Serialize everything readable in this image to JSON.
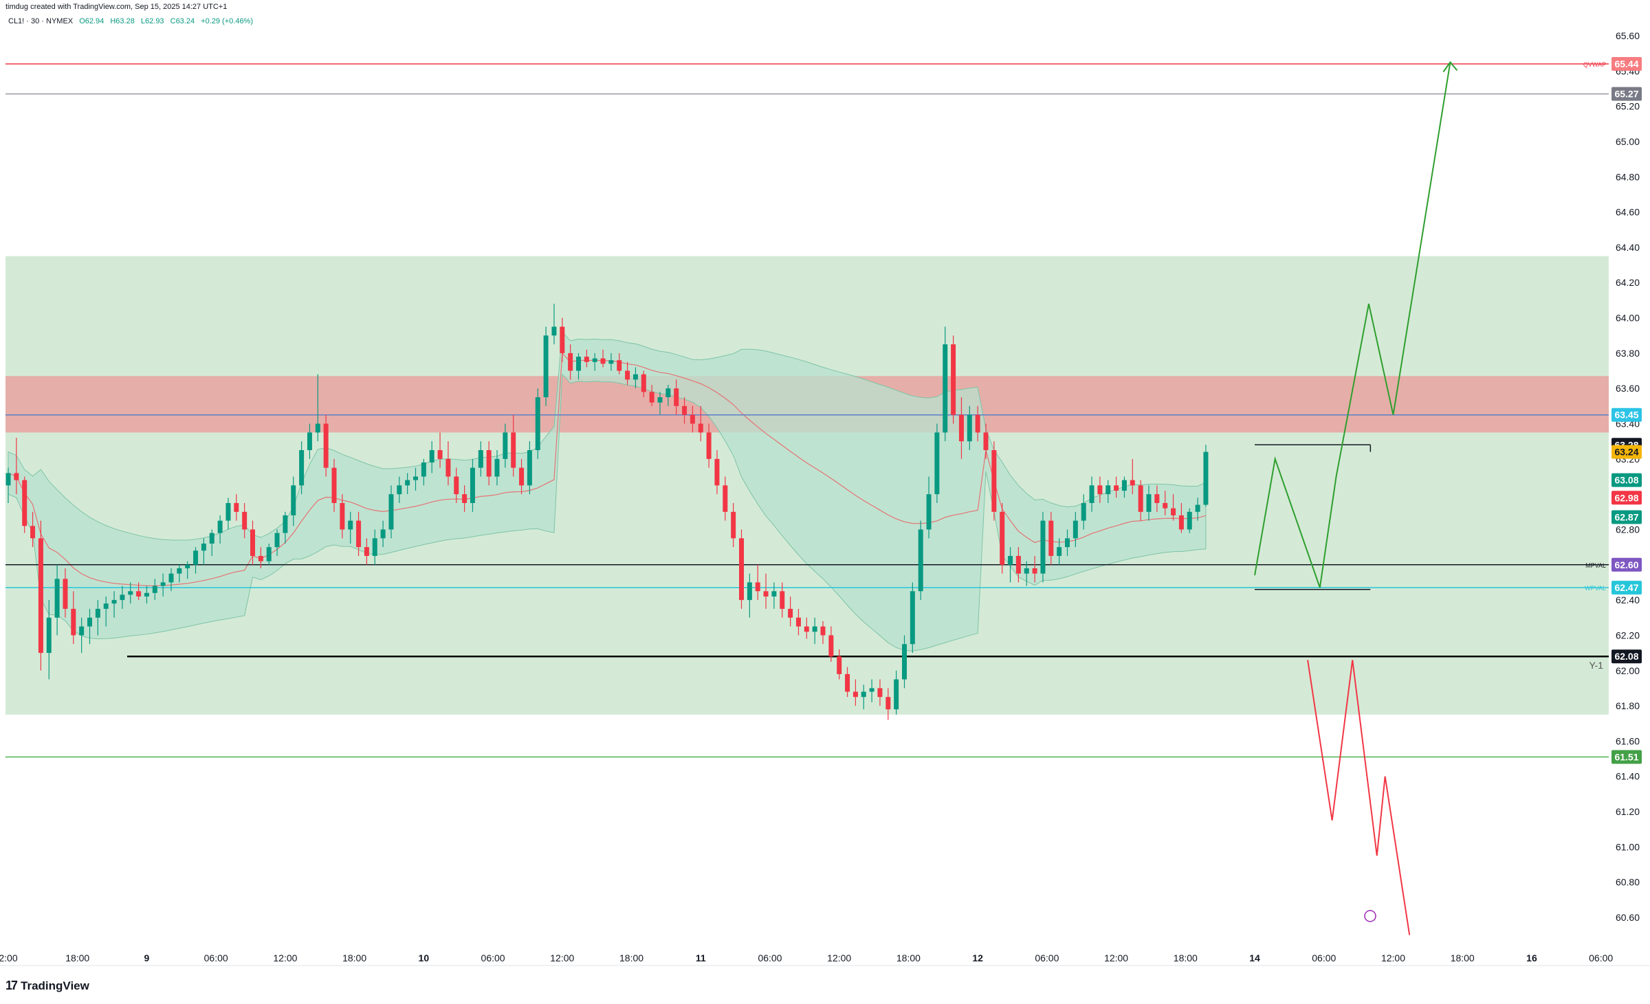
{
  "header": {
    "created_by": "timdug created with TradingView.com, Sep 15, 2025 14:27 UTC+1",
    "symbol": "CL1! · 30 · NYMEX",
    "open": "O62.94",
    "high": "H63.28",
    "low": "L62.93",
    "close": "C63.24",
    "change": "+0.29 (+0.46%)"
  },
  "brand": {
    "logo_text": "TradingView",
    "logo_mark": "17"
  },
  "colors": {
    "up": "#089981",
    "down": "#f23645",
    "green_zone": "#d4ead6",
    "red_zone": "#e6aea8",
    "vwap_band": "#b8e0cf",
    "qvwap": "#f23645",
    "projection_up": "#2e9e2e",
    "projection_down": "#f23645"
  },
  "chart_data": {
    "type": "candlestick",
    "symbol": "CL1!",
    "timeframe": "30",
    "exchange": "NYMEX",
    "ylim": [
      60.5,
      65.8
    ],
    "price_ticks": [
      "65.60",
      "65.40",
      "65.20",
      "65.00",
      "64.80",
      "64.60",
      "64.40",
      "64.20",
      "64.00",
      "63.80",
      "63.60",
      "63.40",
      "63.20",
      "63.00",
      "62.80",
      "62.60",
      "62.40",
      "62.20",
      "62.00",
      "61.80",
      "61.60",
      "61.40",
      "61.20",
      "61.00",
      "60.80",
      "60.60"
    ],
    "x_ticks": [
      {
        "label": "2:00",
        "x": 0.0,
        "bold": false
      },
      {
        "label": "18:00",
        "x": 8.5,
        "bold": false
      },
      {
        "label": "9",
        "x": 17.0,
        "bold": true
      },
      {
        "label": "06:00",
        "x": 25.5,
        "bold": false
      },
      {
        "label": "12:00",
        "x": 34.0,
        "bold": false
      },
      {
        "label": "18:00",
        "x": 42.5,
        "bold": false
      },
      {
        "label": "10",
        "x": 51.0,
        "bold": true
      },
      {
        "label": "06:00",
        "x": 59.5,
        "bold": false
      },
      {
        "label": "12:00",
        "x": 68.0,
        "bold": false
      },
      {
        "label": "18:00",
        "x": 76.5,
        "bold": false
      },
      {
        "label": "11",
        "x": 85.0,
        "bold": true
      },
      {
        "label": "06:00",
        "x": 93.5,
        "bold": false
      },
      {
        "label": "12:00",
        "x": 102.0,
        "bold": false
      },
      {
        "label": "18:00",
        "x": 110.5,
        "bold": false
      },
      {
        "label": "12",
        "x": 119.0,
        "bold": true
      },
      {
        "label": "06:00",
        "x": 127.5,
        "bold": false
      },
      {
        "label": "12:00",
        "x": 136.0,
        "bold": false
      },
      {
        "label": "18:00",
        "x": 144.5,
        "bold": false
      },
      {
        "label": "14",
        "x": 153.0,
        "bold": true
      },
      {
        "label": "06:00",
        "x": 161.5,
        "bold": false
      },
      {
        "label": "12:00",
        "x": 170.0,
        "bold": false
      },
      {
        "label": "18:00",
        "x": 178.5,
        "bold": false
      },
      {
        "label": "16",
        "x": 187.0,
        "bold": true
      },
      {
        "label": "06:00",
        "x": 195.5,
        "bold": false
      }
    ],
    "zones": [
      {
        "name": "green-zone",
        "from": 61.75,
        "to": 64.35,
        "color": "#d4ead6"
      },
      {
        "name": "red-zone",
        "from": 63.35,
        "to": 63.67,
        "color": "#e6aea8"
      }
    ],
    "levels": [
      {
        "name": "QVWAP",
        "price": 65.44,
        "label": "QVWAP",
        "tag": "65.44",
        "color": "#f23645",
        "tag_bg": "#f77c80"
      },
      {
        "name": "level-65.27",
        "price": 65.27,
        "label": "",
        "tag": "65.27",
        "color": "#9598a1",
        "tag_bg": "#787b86"
      },
      {
        "name": "level-63.45",
        "price": 63.45,
        "label": "",
        "tag": "63.45",
        "color": "#5b7fc7",
        "tag_bg": "#2cc3e6"
      },
      {
        "name": "MPVAL",
        "price": 62.6,
        "label": "MPVAL",
        "tag": "62.60",
        "color": "#131722",
        "tag_bg": "#7e57c2"
      },
      {
        "name": "WPVAL",
        "price": 62.47,
        "label": "WPVAL",
        "tag": "62.47",
        "color": "#26c6da",
        "tag_bg": "#26c6da"
      },
      {
        "name": "Y-1",
        "price": 62.08,
        "label": "Y-1",
        "tag": "62.08",
        "color": "#000000",
        "tag_bg": "#131722"
      },
      {
        "name": "level-61.51",
        "price": 61.51,
        "label": "",
        "tag": "61.51",
        "color": "#4caf50",
        "tag_bg": "#43a047"
      }
    ],
    "price_tags": [
      {
        "tag": "63.28",
        "bg": "#131722",
        "fg": "#ffffff",
        "price": 63.28
      },
      {
        "tag": "63.24",
        "bg": "#f5b60a",
        "fg": "#131722",
        "price": 63.24
      },
      {
        "tag": "63.08",
        "bg": "#089981",
        "fg": "#ffffff",
        "price": 63.08
      },
      {
        "tag": "62.98",
        "bg": "#f23645",
        "fg": "#ffffff",
        "price": 62.98
      },
      {
        "tag": "62.87",
        "bg": "#089981",
        "fg": "#ffffff",
        "price": 62.87
      }
    ],
    "candles": [
      [
        63.05,
        63.15,
        62.95,
        63.12
      ],
      [
        63.12,
        63.32,
        63.0,
        63.08
      ],
      [
        63.08,
        63.1,
        62.78,
        62.82
      ],
      [
        62.82,
        62.9,
        62.7,
        62.75
      ],
      [
        62.75,
        62.85,
        62.0,
        62.1
      ],
      [
        62.1,
        62.4,
        61.95,
        62.3
      ],
      [
        62.3,
        62.6,
        62.2,
        62.52
      ],
      [
        62.52,
        62.58,
        62.3,
        62.35
      ],
      [
        62.35,
        62.45,
        62.15,
        62.2
      ],
      [
        62.2,
        62.3,
        62.1,
        62.25
      ],
      [
        62.25,
        62.35,
        62.15,
        62.3
      ],
      [
        62.3,
        62.4,
        62.2,
        62.35
      ],
      [
        62.35,
        62.42,
        62.25,
        62.38
      ],
      [
        62.38,
        62.45,
        62.3,
        62.4
      ],
      [
        62.4,
        62.48,
        62.35,
        62.43
      ],
      [
        62.43,
        62.5,
        62.38,
        62.45
      ],
      [
        62.45,
        62.5,
        62.4,
        62.42
      ],
      [
        62.42,
        62.48,
        62.38,
        62.44
      ],
      [
        62.44,
        62.52,
        62.4,
        62.48
      ],
      [
        62.48,
        62.55,
        62.42,
        62.5
      ],
      [
        62.5,
        62.58,
        62.45,
        62.55
      ],
      [
        62.55,
        62.6,
        62.5,
        62.58
      ],
      [
        62.58,
        62.62,
        62.52,
        62.6
      ],
      [
        62.6,
        62.7,
        62.55,
        62.68
      ],
      [
        62.68,
        62.75,
        62.6,
        62.72
      ],
      [
        62.72,
        62.8,
        62.65,
        62.78
      ],
      [
        62.78,
        62.88,
        62.72,
        62.85
      ],
      [
        62.85,
        62.98,
        62.8,
        62.95
      ],
      [
        62.95,
        63.0,
        62.85,
        62.9
      ],
      [
        62.9,
        62.95,
        62.75,
        62.8
      ],
      [
        62.8,
        62.85,
        62.6,
        62.65
      ],
      [
        62.65,
        62.7,
        62.58,
        62.62
      ],
      [
        62.62,
        62.72,
        62.6,
        62.7
      ],
      [
        62.7,
        62.8,
        62.65,
        62.78
      ],
      [
        62.78,
        62.9,
        62.72,
        62.88
      ],
      [
        62.88,
        63.1,
        62.82,
        63.05
      ],
      [
        63.05,
        63.3,
        63.0,
        63.25
      ],
      [
        63.25,
        63.4,
        63.2,
        63.35
      ],
      [
        63.35,
        63.68,
        63.3,
        63.4
      ],
      [
        63.4,
        63.45,
        63.1,
        63.15
      ],
      [
        63.15,
        63.2,
        62.9,
        62.95
      ],
      [
        62.95,
        63.0,
        62.75,
        62.8
      ],
      [
        62.8,
        62.9,
        62.72,
        62.85
      ],
      [
        62.85,
        62.9,
        62.65,
        62.7
      ],
      [
        62.7,
        62.75,
        62.6,
        62.65
      ],
      [
        62.65,
        62.8,
        62.6,
        62.75
      ],
      [
        62.75,
        62.85,
        62.7,
        62.8
      ],
      [
        62.8,
        63.05,
        62.75,
        63.0
      ],
      [
        63.0,
        63.1,
        62.95,
        63.05
      ],
      [
        63.05,
        63.12,
        63.0,
        63.08
      ],
      [
        63.08,
        63.15,
        63.02,
        63.1
      ],
      [
        63.1,
        63.2,
        63.05,
        63.18
      ],
      [
        63.18,
        63.3,
        63.12,
        63.25
      ],
      [
        63.25,
        63.35,
        63.15,
        63.2
      ],
      [
        63.2,
        63.3,
        63.05,
        63.1
      ],
      [
        63.1,
        63.15,
        62.95,
        63.0
      ],
      [
        63.0,
        63.05,
        62.9,
        62.95
      ],
      [
        62.95,
        63.2,
        62.9,
        63.15
      ],
      [
        63.15,
        63.3,
        63.1,
        63.25
      ],
      [
        63.25,
        63.3,
        63.05,
        63.1
      ],
      [
        63.1,
        63.25,
        63.05,
        63.2
      ],
      [
        63.2,
        63.4,
        63.15,
        63.35
      ],
      [
        63.35,
        63.45,
        63.1,
        63.15
      ],
      [
        63.15,
        63.2,
        63.0,
        63.05
      ],
      [
        63.05,
        63.3,
        63.0,
        63.25
      ],
      [
        63.25,
        63.6,
        63.2,
        63.55
      ],
      [
        63.55,
        63.95,
        63.5,
        63.9
      ],
      [
        63.9,
        64.08,
        63.85,
        63.95
      ],
      [
        63.95,
        64.0,
        63.75,
        63.8
      ],
      [
        63.8,
        63.85,
        63.65,
        63.7
      ],
      [
        63.7,
        63.8,
        63.65,
        63.78
      ],
      [
        63.78,
        63.82,
        63.72,
        63.75
      ],
      [
        63.75,
        63.8,
        63.7,
        63.77
      ],
      [
        63.77,
        63.82,
        63.72,
        63.74
      ],
      [
        63.74,
        63.8,
        63.7,
        63.76
      ],
      [
        63.76,
        63.8,
        63.68,
        63.7
      ],
      [
        63.7,
        63.75,
        63.62,
        63.65
      ],
      [
        63.65,
        63.72,
        63.6,
        63.68
      ],
      [
        63.68,
        63.7,
        63.55,
        63.58
      ],
      [
        63.58,
        63.62,
        63.5,
        63.52
      ],
      [
        63.52,
        63.58,
        63.45,
        63.55
      ],
      [
        63.55,
        63.62,
        63.5,
        63.6
      ],
      [
        63.6,
        63.65,
        63.45,
        63.5
      ],
      [
        63.5,
        63.55,
        63.4,
        63.45
      ],
      [
        63.45,
        63.5,
        63.35,
        63.4
      ],
      [
        63.4,
        63.5,
        63.3,
        63.35
      ],
      [
        63.35,
        63.4,
        63.15,
        63.2
      ],
      [
        63.2,
        63.25,
        63.0,
        63.05
      ],
      [
        63.05,
        63.1,
        62.85,
        62.9
      ],
      [
        62.9,
        62.95,
        62.7,
        62.75
      ],
      [
        62.75,
        62.8,
        62.35,
        62.4
      ],
      [
        62.4,
        62.55,
        62.3,
        62.5
      ],
      [
        62.5,
        62.6,
        62.4,
        62.45
      ],
      [
        62.45,
        62.55,
        62.35,
        62.42
      ],
      [
        62.42,
        62.5,
        62.35,
        62.45
      ],
      [
        62.45,
        62.5,
        62.3,
        62.35
      ],
      [
        62.35,
        62.42,
        62.25,
        62.3
      ],
      [
        62.3,
        62.35,
        62.2,
        62.25
      ],
      [
        62.25,
        62.3,
        62.18,
        62.22
      ],
      [
        62.22,
        62.3,
        62.15,
        62.25
      ],
      [
        62.25,
        62.28,
        62.15,
        62.2
      ],
      [
        62.2,
        62.25,
        62.05,
        62.08
      ],
      [
        62.08,
        62.12,
        61.95,
        61.98
      ],
      [
        61.98,
        62.02,
        61.85,
        61.88
      ],
      [
        61.88,
        61.95,
        61.8,
        61.85
      ],
      [
        61.85,
        61.92,
        61.78,
        61.88
      ],
      [
        61.88,
        61.95,
        61.82,
        61.9
      ],
      [
        61.9,
        61.95,
        61.8,
        61.85
      ],
      [
        61.85,
        61.9,
        61.72,
        61.78
      ],
      [
        61.78,
        62.0,
        61.75,
        61.95
      ],
      [
        61.95,
        62.2,
        61.9,
        62.15
      ],
      [
        62.15,
        62.5,
        62.1,
        62.45
      ],
      [
        62.45,
        62.85,
        62.4,
        62.8
      ],
      [
        62.8,
        63.1,
        62.75,
        63.0
      ],
      [
        63.0,
        63.4,
        62.95,
        63.35
      ],
      [
        63.35,
        63.95,
        63.3,
        63.85
      ],
      [
        63.85,
        63.9,
        63.4,
        63.45
      ],
      [
        63.45,
        63.55,
        63.2,
        63.3
      ],
      [
        63.3,
        63.5,
        63.25,
        63.45
      ],
      [
        63.45,
        63.5,
        63.3,
        63.35
      ],
      [
        63.35,
        63.4,
        63.2,
        63.25
      ],
      [
        63.25,
        63.3,
        62.85,
        62.9
      ],
      [
        62.9,
        62.95,
        62.55,
        62.6
      ],
      [
        62.6,
        62.7,
        62.5,
        62.65
      ],
      [
        62.65,
        62.7,
        62.5,
        62.55
      ],
      [
        62.55,
        62.62,
        62.48,
        62.58
      ],
      [
        62.58,
        62.65,
        62.5,
        62.55
      ],
      [
        62.55,
        62.9,
        62.5,
        62.85
      ],
      [
        62.85,
        62.9,
        62.6,
        62.65
      ],
      [
        62.65,
        62.75,
        62.6,
        62.7
      ],
      [
        62.7,
        62.8,
        62.65,
        62.75
      ],
      [
        62.75,
        62.9,
        62.7,
        62.85
      ],
      [
        62.85,
        63.0,
        62.8,
        62.95
      ],
      [
        62.95,
        63.1,
        62.9,
        63.05
      ],
      [
        63.05,
        63.1,
        62.95,
        63.0
      ],
      [
        63.0,
        63.08,
        62.95,
        63.05
      ],
      [
        63.05,
        63.1,
        62.98,
        63.02
      ],
      [
        63.02,
        63.1,
        62.98,
        63.08
      ],
      [
        63.08,
        63.2,
        63.0,
        63.05
      ],
      [
        63.05,
        63.08,
        62.85,
        62.9
      ],
      [
        62.9,
        63.05,
        62.85,
        63.0
      ],
      [
        63.0,
        63.05,
        62.9,
        62.95
      ],
      [
        62.95,
        63.02,
        62.88,
        62.92
      ],
      [
        62.92,
        63.0,
        62.85,
        62.88
      ],
      [
        62.88,
        62.95,
        62.78,
        62.8
      ],
      [
        62.8,
        62.92,
        62.78,
        62.9
      ],
      [
        62.9,
        62.98,
        62.85,
        62.94
      ],
      [
        62.94,
        63.28,
        62.93,
        63.24
      ]
    ],
    "projection_up": [
      [
        153,
        62.54
      ],
      [
        155.5,
        63.2
      ],
      [
        161,
        62.47
      ],
      [
        163,
        63.1
      ],
      [
        167,
        64.08
      ],
      [
        170,
        63.45
      ],
      [
        177,
        65.45
      ]
    ],
    "projection_down": [
      [
        159.5,
        62.06
      ],
      [
        162.5,
        61.15
      ],
      [
        165,
        62.06
      ],
      [
        168,
        60.95
      ],
      [
        169,
        61.4
      ],
      [
        172,
        60.5
      ]
    ]
  }
}
